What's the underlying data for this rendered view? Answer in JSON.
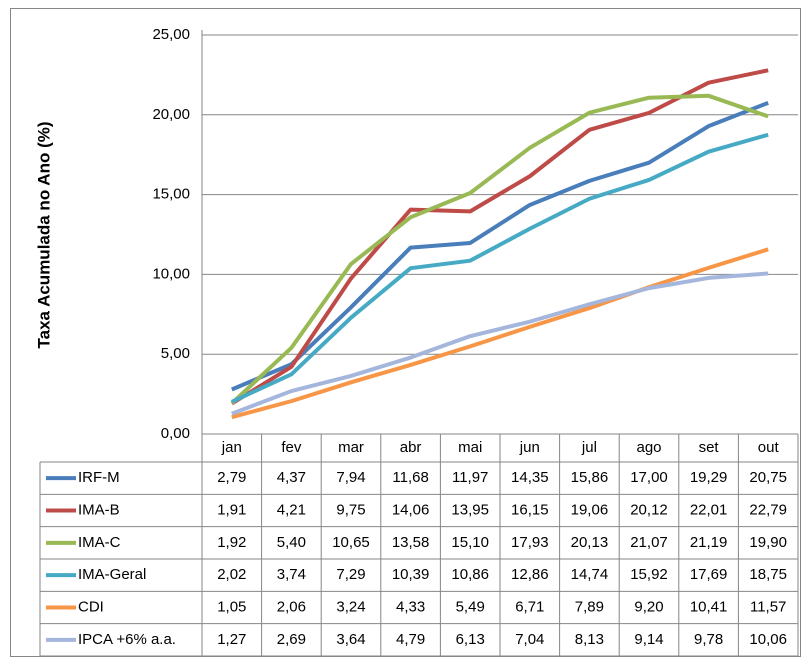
{
  "chart_data": {
    "type": "line",
    "y_label": "Taxa Acumulada no Ano (%)",
    "categories": [
      "jan",
      "fev",
      "mar",
      "abr",
      "mai",
      "jun",
      "jul",
      "ago",
      "set",
      "out"
    ],
    "ylim": [
      0,
      25
    ],
    "yticks": [
      {
        "value": 0,
        "label": "0,00"
      },
      {
        "value": 5,
        "label": "5,00"
      },
      {
        "value": 10,
        "label": "10,00"
      },
      {
        "value": 15,
        "label": "15,00"
      },
      {
        "value": 20,
        "label": "20,00"
      },
      {
        "value": 25,
        "label": "25,00"
      }
    ],
    "grid": true,
    "series": [
      {
        "name": "IRF-M",
        "color": "#4a7ebb",
        "values": [
          2.79,
          4.37,
          7.94,
          11.68,
          11.97,
          14.35,
          15.86,
          17.0,
          19.29,
          20.75
        ],
        "value_labels": [
          "2,79",
          "4,37",
          "7,94",
          "11,68",
          "11,97",
          "14,35",
          "15,86",
          "17,00",
          "19,29",
          "20,75"
        ]
      },
      {
        "name": "IMA-B",
        "color": "#be4b48",
        "values": [
          1.91,
          4.21,
          9.75,
          14.06,
          13.95,
          16.15,
          19.06,
          20.12,
          22.01,
          22.79
        ],
        "value_labels": [
          "1,91",
          "4,21",
          "9,75",
          "14,06",
          "13,95",
          "16,15",
          "19,06",
          "20,12",
          "22,01",
          "22,79"
        ]
      },
      {
        "name": "IMA-C",
        "color": "#98b954",
        "values": [
          1.92,
          5.4,
          10.65,
          13.58,
          15.1,
          17.93,
          20.13,
          21.07,
          21.19,
          19.9
        ],
        "value_labels": [
          "1,92",
          "5,40",
          "10,65",
          "13,58",
          "15,10",
          "17,93",
          "20,13",
          "21,07",
          "21,19",
          "19,90"
        ]
      },
      {
        "name": "IMA-Geral",
        "color": "#46aac5",
        "values": [
          2.02,
          3.74,
          7.29,
          10.39,
          10.86,
          12.86,
          14.74,
          15.92,
          17.69,
          18.75
        ],
        "value_labels": [
          "2,02",
          "3,74",
          "7,29",
          "10,39",
          "10,86",
          "12,86",
          "14,74",
          "15,92",
          "17,69",
          "18,75"
        ]
      },
      {
        "name": "CDI",
        "color": "#f79646",
        "values": [
          1.05,
          2.06,
          3.24,
          4.33,
          5.49,
          6.71,
          7.89,
          9.2,
          10.41,
          11.57
        ],
        "value_labels": [
          "1,05",
          "2,06",
          "3,24",
          "4,33",
          "5,49",
          "6,71",
          "7,89",
          "9,20",
          "10,41",
          "11,57"
        ]
      },
      {
        "name": "IPCA +6% a.a.",
        "color": "#a5b6dd",
        "values": [
          1.27,
          2.69,
          3.64,
          4.79,
          6.13,
          7.04,
          8.13,
          9.14,
          9.78,
          10.06
        ],
        "value_labels": [
          "1,27",
          "2,69",
          "3,64",
          "4,79",
          "6,13",
          "7,04",
          "8,13",
          "9,14",
          "9,78",
          "10,06"
        ]
      }
    ]
  }
}
